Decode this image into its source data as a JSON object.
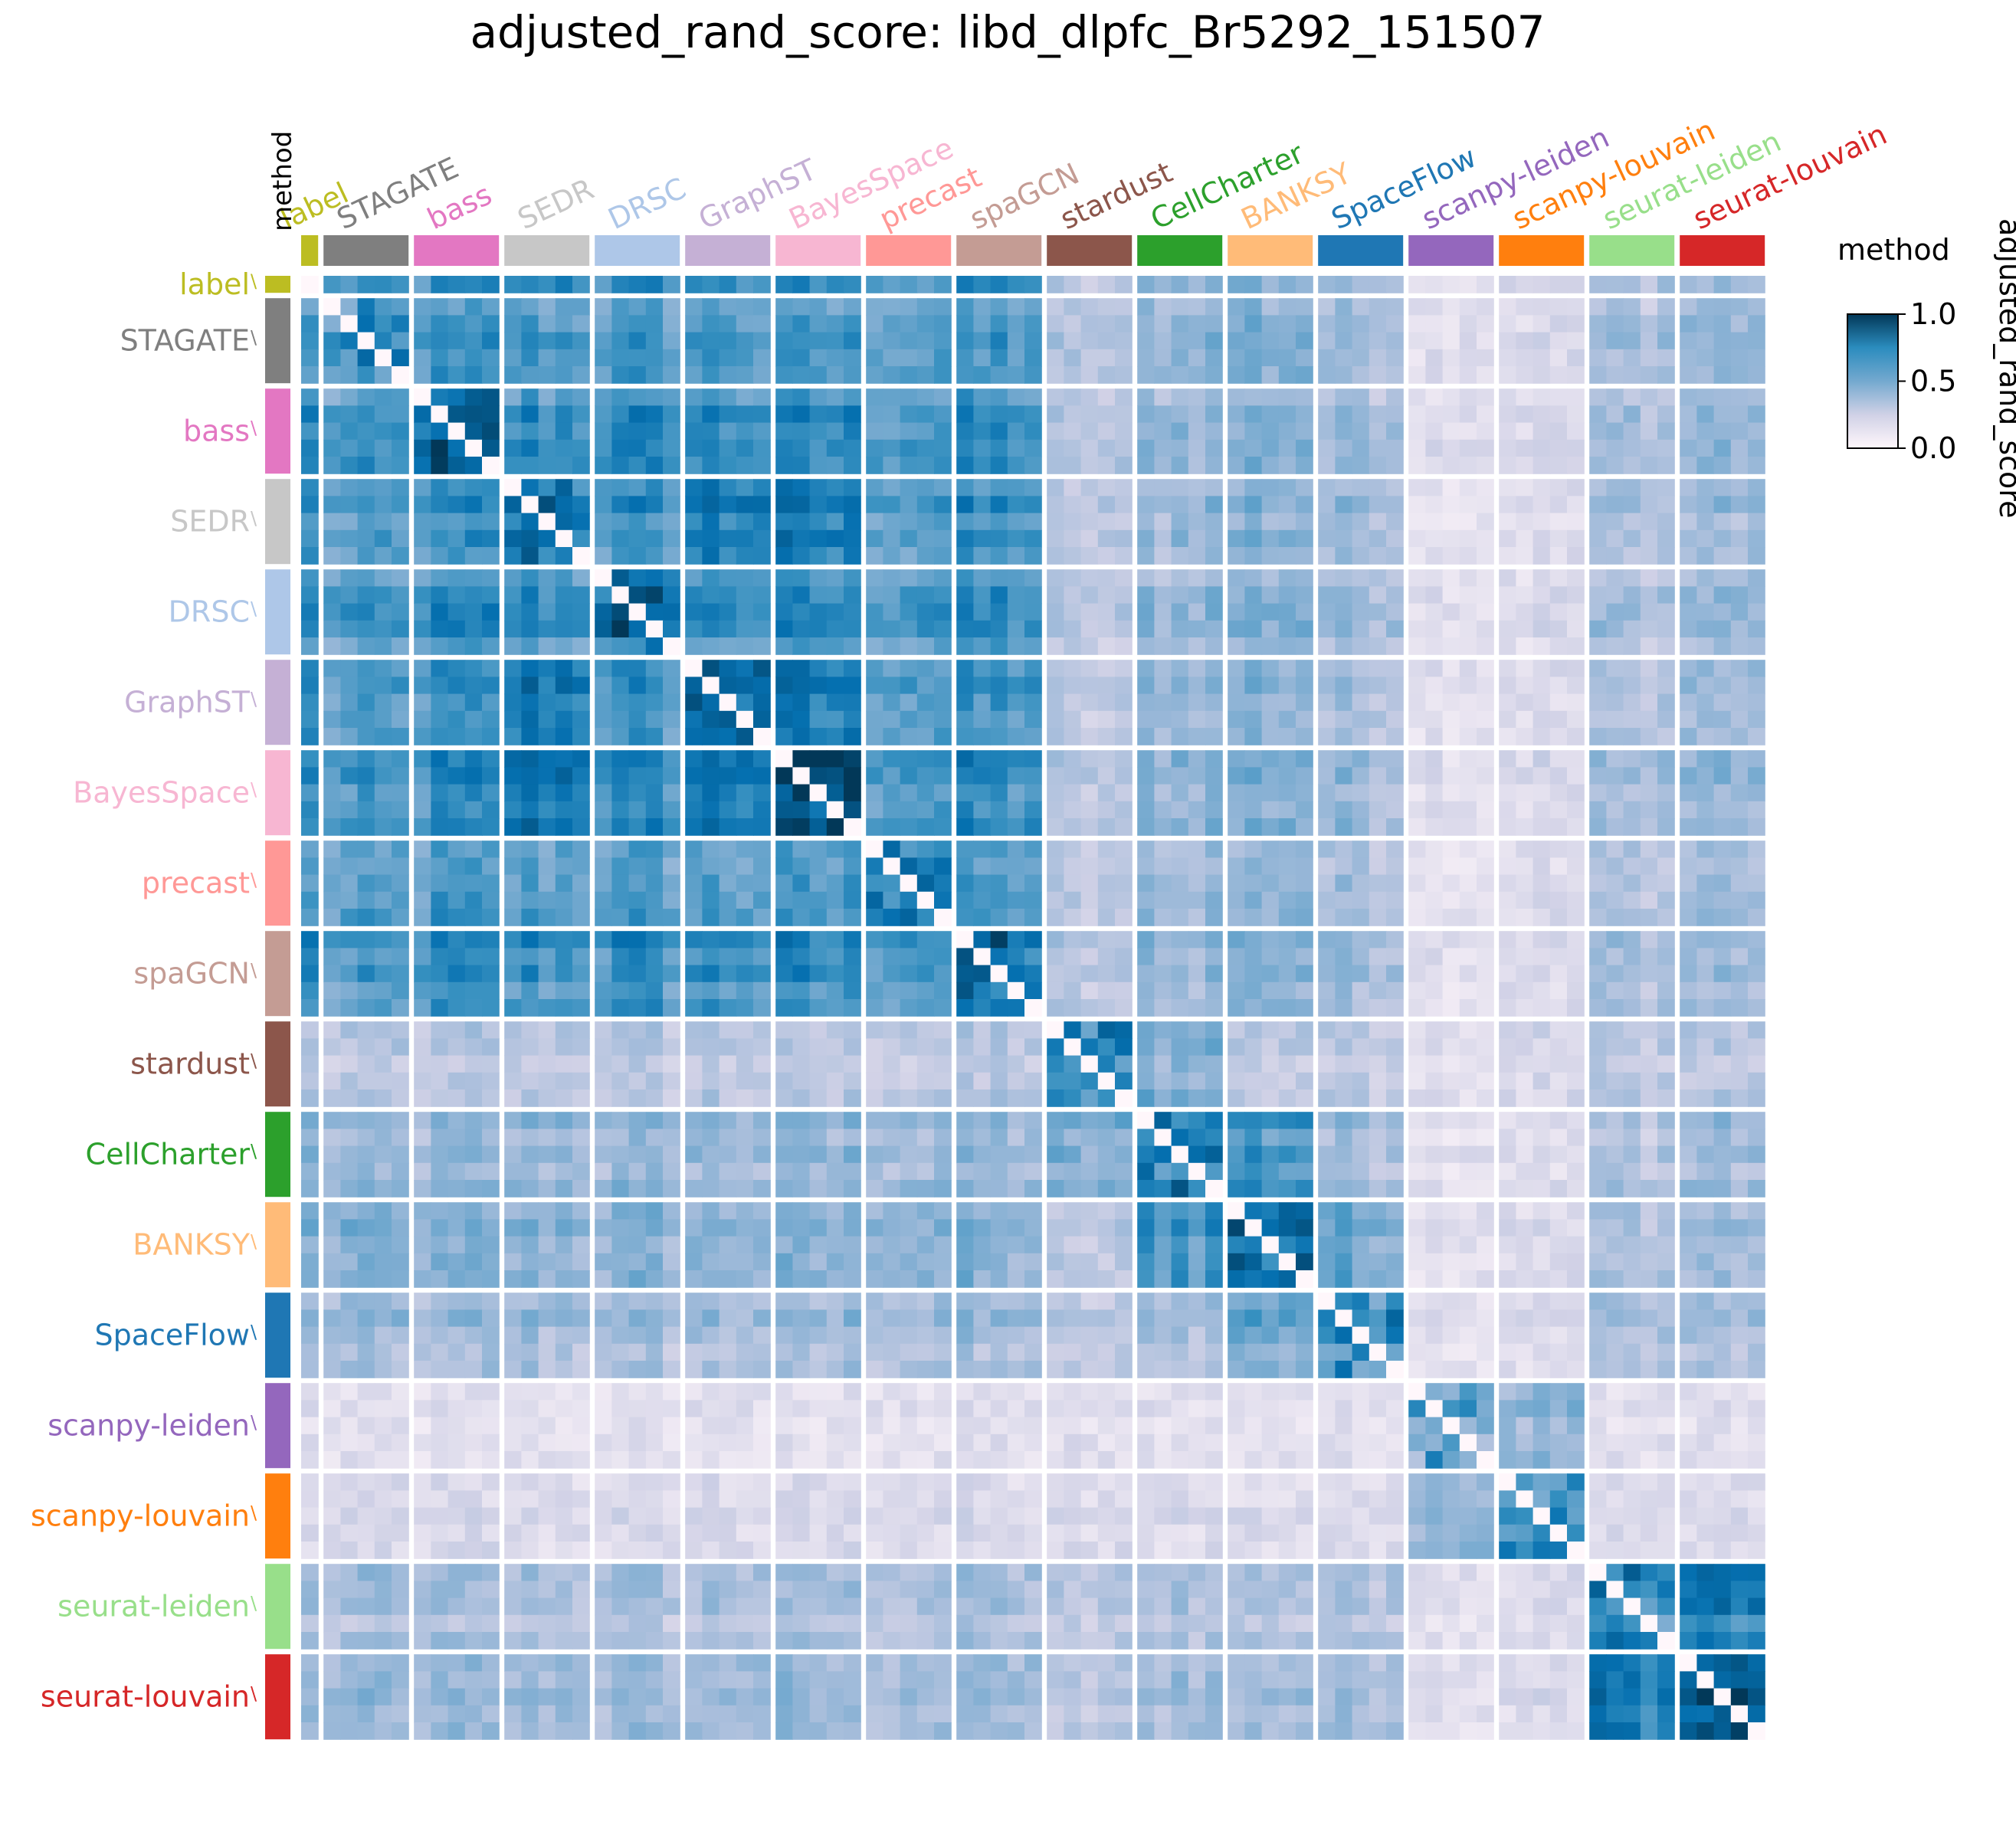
{
  "chart_data": {
    "type": "heatmap",
    "title": "adjusted_rand_score: libd_dlpfc_Br5292_151507",
    "annotation_label": "method",
    "legend_title": "method",
    "colorbar": {
      "label": "adjusted_rand_score",
      "range": [
        0.0,
        1.0
      ],
      "ticks": [
        "1.0",
        "0.5",
        "0.0"
      ],
      "colormap": "PuBu"
    },
    "methods": [
      {
        "name": "label",
        "count": 1,
        "color": "#bcbd22",
        "self": 0.0,
        "cross": 0.62,
        "stardust_like": 0.0
      },
      {
        "name": "STAGATE",
        "count": 5,
        "color": "#7f7f7f",
        "self": 0.55,
        "cross": 0.55
      },
      {
        "name": "bass",
        "count": 5,
        "color": "#e377c2",
        "self": 0.7,
        "cross": 0.6
      },
      {
        "name": "SEDR",
        "count": 5,
        "color": "#c7c7c7",
        "self": 0.75,
        "cross": 0.62
      },
      {
        "name": "DRSC",
        "count": 5,
        "color": "#aec7e8",
        "self": 0.7,
        "cross": 0.6
      },
      {
        "name": "GraphST",
        "count": 5,
        "color": "#c5b0d5",
        "self": 0.75,
        "cross": 0.62
      },
      {
        "name": "BayesSpace",
        "count": 5,
        "color": "#f7b6d2",
        "self": 0.82,
        "cross": 0.6
      },
      {
        "name": "precast",
        "count": 5,
        "color": "#ff9896",
        "self": 0.72,
        "cross": 0.58
      },
      {
        "name": "spaGCN",
        "count": 5,
        "color": "#c49c94",
        "self": 0.7,
        "cross": 0.6
      },
      {
        "name": "stardust",
        "count": 5,
        "color": "#8c564b",
        "self": 0.55,
        "cross": 0.3
      },
      {
        "name": "CellCharter",
        "count": 5,
        "color": "#2ca02c",
        "self": 0.68,
        "cross": 0.42
      },
      {
        "name": "BANKSY",
        "count": 5,
        "color": "#ffbb78",
        "self": 0.75,
        "cross": 0.45
      },
      {
        "name": "SpaceFlow",
        "count": 5,
        "color": "#1f77b4",
        "self": 0.62,
        "cross": 0.38
      },
      {
        "name": "scanpy-leiden",
        "count": 5,
        "color": "#9467bd",
        "self": 0.5,
        "cross": 0.18
      },
      {
        "name": "scanpy-louvain",
        "count": 5,
        "color": "#ff7f0e",
        "self": 0.55,
        "cross": 0.2
      },
      {
        "name": "seurat-leiden",
        "count": 5,
        "color": "#98df8a",
        "self": 0.62,
        "cross": 0.35
      },
      {
        "name": "seurat-louvain",
        "count": 5,
        "color": "#d62728",
        "self": 0.85,
        "cross": 0.4
      }
    ],
    "pair_overrides": [
      {
        "a": "seurat-leiden",
        "b": "seurat-louvain",
        "value": 0.72
      },
      {
        "a": "scanpy-leiden",
        "b": "scanpy-louvain",
        "value": 0.45
      },
      {
        "a": "CellCharter",
        "b": "BANKSY",
        "value": 0.62
      },
      {
        "a": "BayesSpace",
        "b": "SEDR",
        "value": 0.7
      },
      {
        "a": "BayesSpace",
        "b": "GraphST",
        "value": 0.7
      },
      {
        "a": "SEDR",
        "b": "GraphST",
        "value": 0.72
      },
      {
        "a": "SpaceFlow",
        "b": "BANKSY",
        "value": 0.52
      },
      {
        "a": "stardust",
        "b": "CellCharter",
        "value": 0.45
      }
    ]
  }
}
